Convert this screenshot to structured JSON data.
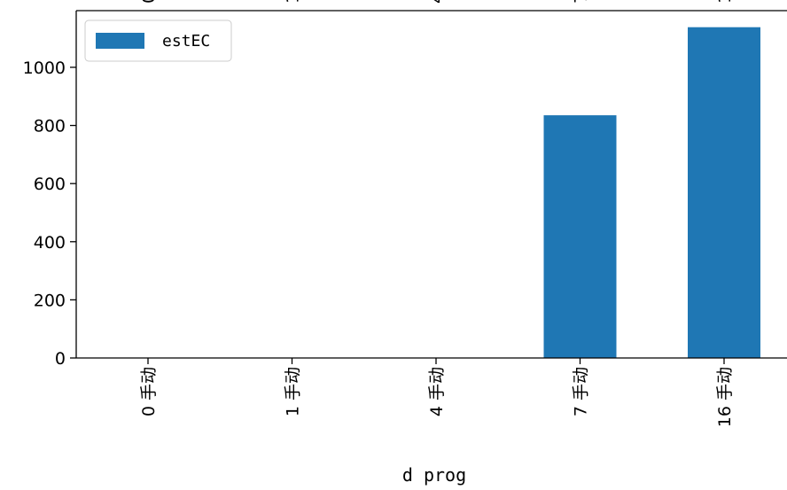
{
  "chart_data": {
    "type": "bar",
    "categories": [
      "0 手动",
      "1 手动",
      "4 手动",
      "7 手动",
      "16 手动"
    ],
    "series": [
      {
        "name": "estEC",
        "values": [
          0,
          0,
          0,
          835,
          1138
        ],
        "color": "#1f77b4"
      }
    ],
    "xlabel": "d prog",
    "ylabel": "",
    "ylim": [
      0,
      1195
    ],
    "yticks": [
      0,
      200,
      400,
      600,
      800,
      1000
    ],
    "legend_position": "top-left",
    "grid": false
  }
}
